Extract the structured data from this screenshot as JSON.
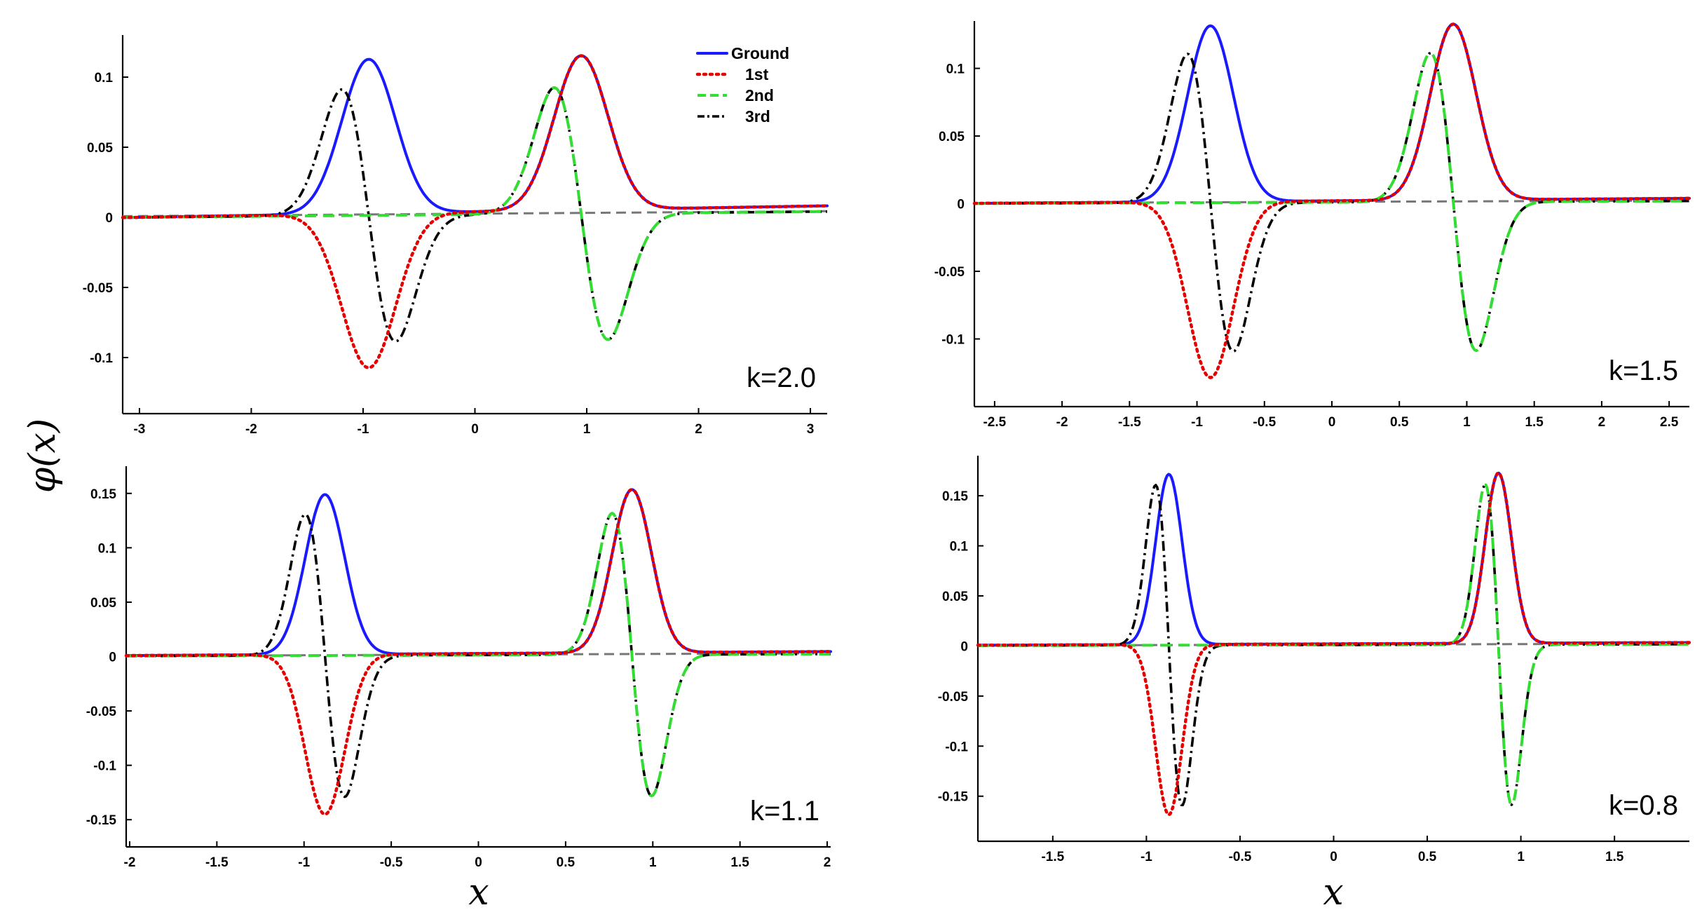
{
  "figure": {
    "ylabel": "φ(x)",
    "xlabel": "x",
    "legend": {
      "placement": "top-right of top-left panel",
      "entries": [
        {
          "name": "Ground",
          "color": "#1a1aff",
          "style": "solid"
        },
        {
          "name": "1st",
          "color": "#e60000",
          "style": "dotted"
        },
        {
          "name": "2nd",
          "color": "#33dd33",
          "style": "dashed"
        },
        {
          "name": "3rd",
          "color": "#000000",
          "style": "dashdot"
        }
      ]
    }
  },
  "chart_data": [
    {
      "type": "line",
      "title": "k=2.0",
      "xlim": [
        -3.15,
        3.15
      ],
      "ylim": [
        -0.14,
        0.13
      ],
      "xticks": [
        -3,
        -2,
        -1,
        0,
        1,
        2,
        3
      ],
      "xtick_labels": [
        "-3",
        "-2",
        "-1",
        "0",
        "1",
        "2",
        "3"
      ],
      "yticks": [
        0.1,
        0.05,
        0,
        -0.05,
        -0.1
      ],
      "ytick_labels": [
        "0.1",
        "0.05",
        "0",
        "-0.05",
        "-0.1"
      ],
      "model": {
        "kind": "double_well",
        "a": 0.95,
        "w": 0.34,
        "tilt": 0.008,
        "leftScale": 1.0
      },
      "series": [
        {
          "name": "Ground",
          "peak": 0.11
        },
        {
          "name": "1st",
          "peak": 0.11
        },
        {
          "name": "2nd",
          "peak": 0.09
        },
        {
          "name": "3rd",
          "peak": 0.09
        }
      ]
    },
    {
      "type": "line",
      "title": "k=1.5",
      "xlim": [
        -2.65,
        2.65
      ],
      "ylim": [
        -0.15,
        0.135
      ],
      "xticks": [
        -2.5,
        -2,
        -1.5,
        -1,
        -0.5,
        0,
        0.5,
        1,
        1.5,
        2,
        2.5
      ],
      "xtick_labels": [
        "-2.5",
        "-2",
        "-1.5",
        "-1",
        "-0.5",
        "0",
        "0.5",
        "1",
        "1.5",
        "2",
        "2.5"
      ],
      "yticks": [
        0.1,
        0.05,
        0,
        -0.05,
        -0.1
      ],
      "ytick_labels": [
        "0.1",
        "0.05",
        "0",
        "-0.05",
        "-0.1"
      ],
      "model": {
        "kind": "double_well",
        "a": 0.9,
        "w": 0.24,
        "tilt": 0.0042,
        "leftScale": 1.0
      },
      "series": [
        {
          "name": "Ground",
          "peak": 0.13
        },
        {
          "name": "1st",
          "peak": 0.13
        },
        {
          "name": "2nd",
          "peak": 0.11
        },
        {
          "name": "3rd",
          "peak": 0.11
        }
      ]
    },
    {
      "type": "line",
      "title": "k=1.1",
      "xlim": [
        -2.02,
        2.02
      ],
      "ylim": [
        -0.175,
        0.175
      ],
      "xticks": [
        -2,
        -1.5,
        -1,
        -0.5,
        0,
        0.5,
        1,
        1.5,
        2
      ],
      "xtick_labels": [
        "-2",
        "-1.5",
        "-1",
        "-0.5",
        "0",
        "0.5",
        "1",
        "1.5",
        "2"
      ],
      "yticks": [
        0.15,
        0.1,
        0.05,
        0,
        -0.05,
        -0.1,
        -0.15
      ],
      "ytick_labels": [
        "0.15",
        "0.1",
        "0.05",
        "0",
        "-0.05",
        "-0.1",
        "-0.15"
      ],
      "model": {
        "kind": "double_well",
        "a": 0.88,
        "w": 0.16,
        "tilt": 0.0055,
        "leftScale": 0.98
      },
      "series": [
        {
          "name": "Ground",
          "peak": 0.15
        },
        {
          "name": "1st",
          "peak": 0.15
        },
        {
          "name": "2nd",
          "peak": 0.13
        },
        {
          "name": "3rd",
          "peak": 0.13
        }
      ]
    },
    {
      "type": "line",
      "title": "k=0.8",
      "xlim": [
        -1.9,
        1.9
      ],
      "ylim": [
        -0.195,
        0.19
      ],
      "xticks": [
        -1.5,
        -1,
        -0.5,
        0,
        0.5,
        1,
        1.5
      ],
      "xtick_labels": [
        "-1.5",
        "-1",
        "-0.5",
        "0",
        "0.5",
        "1",
        "1.5"
      ],
      "yticks": [
        0.15,
        0.1,
        0.05,
        0,
        -0.05,
        -0.1,
        -0.15
      ],
      "ytick_labels": [
        "0.15",
        "0.1",
        "0.05",
        "0",
        "-0.05",
        "-0.1",
        "-0.15"
      ],
      "model": {
        "kind": "double_well",
        "a": 0.88,
        "w": 0.1,
        "tilt": 0.0042,
        "leftScale": 1.0
      },
      "series": [
        {
          "name": "Ground",
          "peak": 0.17
        },
        {
          "name": "1st",
          "peak": 0.17
        },
        {
          "name": "2nd",
          "peak": 0.16
        },
        {
          "name": "3rd",
          "peak": 0.16
        }
      ]
    }
  ]
}
